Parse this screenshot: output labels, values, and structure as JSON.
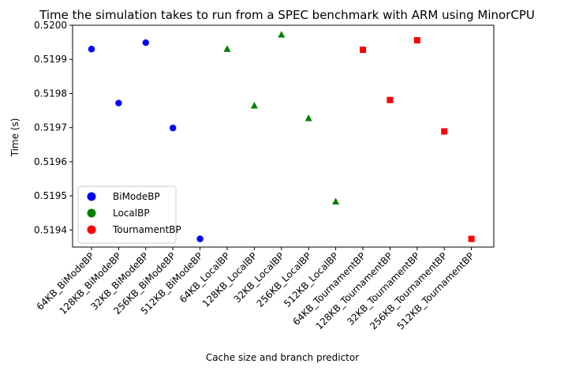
{
  "chart_data": {
    "type": "scatter",
    "title": "Time the simulation takes to run from a SPEC benchmark with ARM using MinorCPU",
    "xlabel": "Cache size and branch predictor",
    "ylabel": "Time (s)",
    "categories": [
      "64KB_BiModeBP",
      "128KB_BiModeBP",
      "32KB_BiModeBP",
      "256KB_BiModeBP",
      "512KB_BiModeBP",
      "64KB_LocalBP",
      "128KB_LocalBP",
      "32KB_LocalBP",
      "256KB_LocalBP",
      "512KB_LocalBP",
      "64KB_TournamentBP",
      "128KB_TournamentBP",
      "32KB_TournamentBP",
      "256KB_TournamentBP",
      "512KB_TournamentBP"
    ],
    "ylim": [
      0.51935,
      0.52
    ],
    "yticks": [
      "0.5194",
      "0.5195",
      "0.5196",
      "0.5197",
      "0.5198",
      "0.5199",
      "0.5200"
    ],
    "legend_position": "lower-left",
    "grid": false,
    "series": [
      {
        "name": "BiModeBP",
        "color": "#0000ff",
        "marker": "circle",
        "x": [
          "64KB_BiModeBP",
          "128KB_BiModeBP",
          "32KB_BiModeBP",
          "256KB_BiModeBP",
          "512KB_BiModeBP"
        ],
        "values": [
          0.51993,
          0.519772,
          0.519949,
          0.519699,
          0.519374
        ]
      },
      {
        "name": "LocalBP",
        "color": "#008000",
        "marker": "triangle",
        "x": [
          "64KB_LocalBP",
          "128KB_LocalBP",
          "32KB_LocalBP",
          "256KB_LocalBP",
          "512KB_LocalBP"
        ],
        "values": [
          0.51993,
          0.519764,
          0.519972,
          0.519727,
          0.519483
        ]
      },
      {
        "name": "TournamentBP",
        "color": "#ff0000",
        "marker": "square",
        "x": [
          "64KB_TournamentBP",
          "128KB_TournamentBP",
          "32KB_TournamentBP",
          "256KB_TournamentBP",
          "512KB_TournamentBP"
        ],
        "values": [
          0.519928,
          0.519781,
          0.519956,
          0.519689,
          0.519374
        ]
      }
    ]
  }
}
